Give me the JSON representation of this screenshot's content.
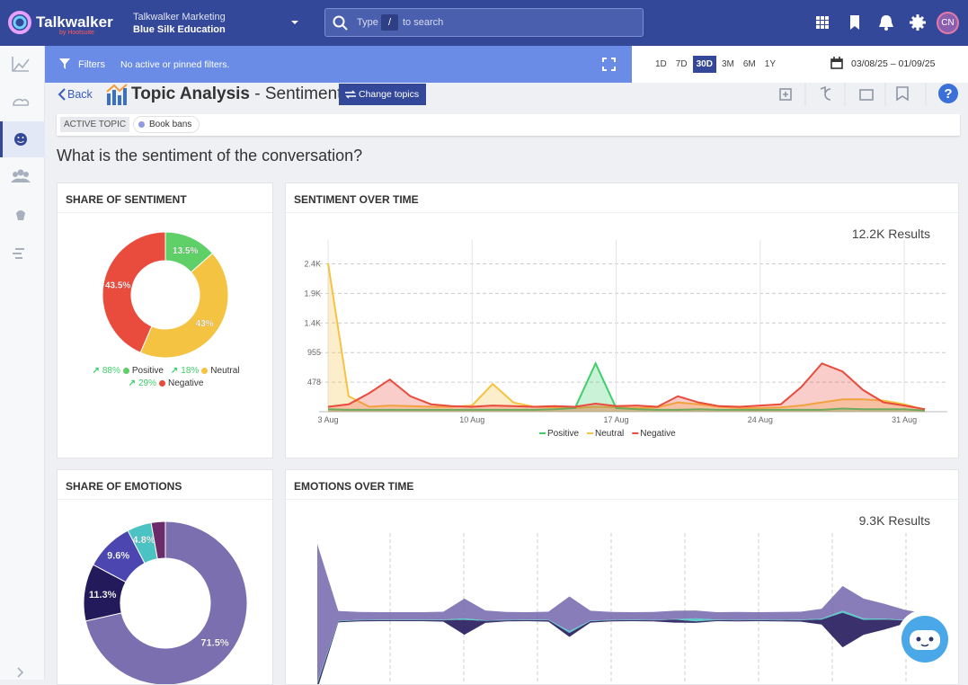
{
  "header": {
    "logo": "Talkwalker",
    "logo_sub": "by Hootsuite",
    "account": "Talkwalker Marketing",
    "project": "Blue Silk Education",
    "search_prefix": "Type",
    "search_key": "/",
    "search_suffix": "to search",
    "avatar": "CN"
  },
  "filter_bar": {
    "label": "Filters",
    "status": "No active or pinned filters.",
    "ranges": [
      "1D",
      "7D",
      "30D",
      "3M",
      "6M",
      "1Y"
    ],
    "active_range": "30D",
    "date_range": "03/08/25 – 01/09/25"
  },
  "page": {
    "back": "Back",
    "title": "Topic Analysis",
    "subtitle": "- Sentiment",
    "change_topics": "Change topics",
    "active_topic_label": "ACTIVE TOPIC",
    "active_topic": "Book bans",
    "question": "What is the sentiment of the conversation?"
  },
  "chart_data": [
    {
      "type": "pie",
      "title": "SHARE OF SENTIMENT",
      "categories": [
        "Positive",
        "Neutral",
        "Negative"
      ],
      "values": [
        13.5,
        43,
        43.5
      ],
      "value_labels": [
        "13.5%",
        "43%",
        "43.5%"
      ],
      "colors": [
        "#5fd068",
        "#f5c342",
        "#e94b3c"
      ],
      "changes": [
        "88%",
        "18%",
        "29%"
      ]
    },
    {
      "type": "area",
      "title": "SENTIMENT OVER TIME",
      "results": "12.2K Results",
      "categories": [
        "3 Aug",
        null,
        null,
        null,
        null,
        null,
        null,
        "10 Aug",
        null,
        null,
        null,
        null,
        null,
        null,
        "17 Aug",
        null,
        null,
        null,
        null,
        null,
        null,
        "24 Aug",
        null,
        null,
        null,
        null,
        null,
        null,
        "31 Aug",
        null
      ],
      "series": [
        {
          "name": "Neutral",
          "color": "#f5c342",
          "values": [
            2400,
            250,
            80,
            100,
            90,
            80,
            80,
            100,
            450,
            150,
            80,
            70,
            60,
            80,
            70,
            60,
            70,
            150,
            120,
            80,
            60,
            60,
            70,
            100,
            150,
            200,
            200,
            180,
            120,
            30
          ]
        },
        {
          "name": "Positive",
          "color": "#3ecf6a",
          "values": [
            40,
            30,
            30,
            30,
            30,
            30,
            30,
            30,
            30,
            30,
            30,
            40,
            60,
            780,
            60,
            40,
            30,
            30,
            40,
            30,
            30,
            30,
            30,
            30,
            30,
            50,
            40,
            40,
            40,
            20
          ]
        },
        {
          "name": "Negative",
          "color": "#e94b3c",
          "values": [
            80,
            120,
            300,
            520,
            250,
            120,
            90,
            80,
            100,
            90,
            80,
            90,
            80,
            130,
            90,
            100,
            80,
            250,
            150,
            90,
            80,
            100,
            120,
            400,
            780,
            650,
            350,
            150,
            100,
            40
          ]
        }
      ],
      "legend_order": [
        "Positive",
        "Neutral",
        "Negative"
      ],
      "ylim": [
        0,
        2700
      ],
      "yticks": [
        478,
        955,
        {
          "value": 1433,
          "label": "1.4K"
        },
        {
          "value": 1911,
          "label": "1.9K"
        },
        {
          "value": 2388,
          "label": "2.4K"
        }
      ],
      "grid": true
    },
    {
      "type": "pie",
      "title": "SHARE OF EMOTIONS",
      "values": [
        71.5,
        11.3,
        9.6,
        4.8,
        2.8
      ],
      "value_labels": [
        "71.5%",
        "11.3%",
        "9.6%",
        "4.8%",
        null
      ],
      "colors": [
        "#7b6fb0",
        "#231a5c",
        "#4b46b0",
        "#4cc3c3",
        "#6b2b6b"
      ]
    },
    {
      "type": "stream",
      "title": "EMOTIONS OVER TIME",
      "results": "9.3K Results",
      "series": [
        {
          "color": "#7b6fb0",
          "values": [
            2800,
            200,
            160,
            150,
            150,
            150,
            160,
            400,
            200,
            160,
            150,
            160,
            700,
            200,
            160,
            150,
            160,
            170,
            160,
            150,
            160,
            150,
            160,
            160,
            200,
            500,
            400,
            300,
            200,
            100
          ]
        },
        {
          "color": "#4cc3c3",
          "values": [
            40,
            10,
            10,
            10,
            10,
            10,
            10,
            30,
            10,
            10,
            10,
            10,
            40,
            10,
            10,
            10,
            10,
            10,
            60,
            10,
            10,
            10,
            10,
            10,
            20,
            40,
            30,
            20,
            10,
            5
          ]
        },
        {
          "color": "#231a5c",
          "values": [
            100,
            20,
            20,
            20,
            20,
            20,
            30,
            300,
            40,
            20,
            20,
            30,
            80,
            30,
            20,
            20,
            20,
            60,
            30,
            20,
            20,
            20,
            20,
            30,
            100,
            700,
            300,
            200,
            60,
            20
          ]
        }
      ]
    }
  ]
}
